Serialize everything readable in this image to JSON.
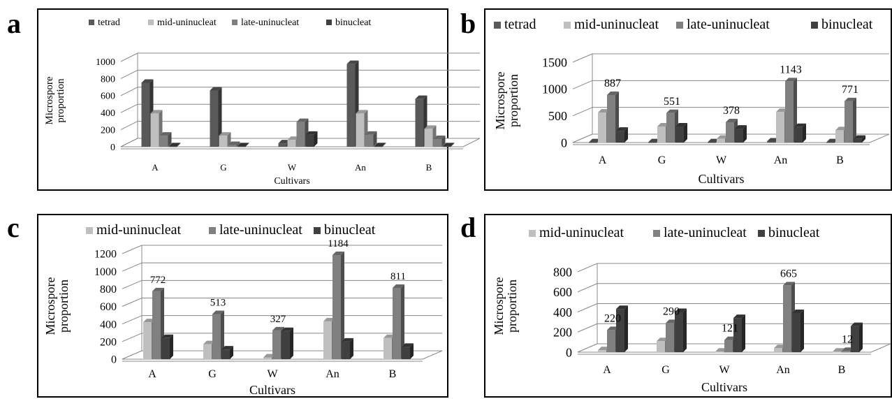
{
  "colors": {
    "tetrad": "#595959",
    "mid_uninucleat": "#bfbfbf",
    "late_uninucleat": "#808080",
    "binucleat": "#404040"
  },
  "panels": [
    {
      "letter": "a"
    },
    {
      "letter": "b"
    },
    {
      "letter": "c"
    },
    {
      "letter": "d"
    }
  ],
  "chart_data": [
    {
      "panel": "a",
      "type": "bar",
      "categories": [
        "A",
        "G",
        "W",
        "An",
        "B"
      ],
      "series": [
        {
          "name": "tetrad",
          "values": [
            750,
            660,
            40,
            970,
            560
          ]
        },
        {
          "name": "mid-uninucleat",
          "values": [
            390,
            130,
            80,
            390,
            210
          ]
        },
        {
          "name": "late-uninucleat",
          "values": [
            130,
            20,
            290,
            140,
            90
          ]
        },
        {
          "name": "binucleat",
          "values": [
            5,
            5,
            140,
            5,
            5
          ]
        }
      ],
      "xlabel": "Cultivars",
      "ylabel": "Microspore proportion",
      "ylim": [
        0,
        1000
      ],
      "yticks": [
        0,
        200,
        400,
        600,
        800,
        1000
      ],
      "data_labels": [],
      "legend_position": "top",
      "grid": true
    },
    {
      "panel": "b",
      "type": "bar",
      "categories": [
        "A",
        "G",
        "W",
        "An",
        "B"
      ],
      "series": [
        {
          "name": "tetrad",
          "values": [
            5,
            5,
            5,
            20,
            5
          ]
        },
        {
          "name": "mid-uninucleat",
          "values": [
            560,
            300,
            70,
            570,
            230
          ]
        },
        {
          "name": "late-uninucleat",
          "values": [
            887,
            551,
            378,
            1143,
            771
          ]
        },
        {
          "name": "binucleat",
          "values": [
            220,
            300,
            260,
            290,
            70
          ]
        }
      ],
      "xlabel": "Cultivars",
      "ylabel": "Microspore proportion",
      "ylim": [
        0,
        1500
      ],
      "yticks": [
        0,
        500,
        1000,
        1500
      ],
      "data_labels": [
        "887",
        "551",
        "378",
        "1143",
        "771"
      ],
      "legend_position": "top",
      "grid": true
    },
    {
      "panel": "c",
      "type": "bar",
      "categories": [
        "A",
        "G",
        "W",
        "An",
        "B"
      ],
      "series": [
        {
          "name": "mid-uninucleat",
          "values": [
            420,
            170,
            20,
            430,
            240
          ]
        },
        {
          "name": "late-uninucleat",
          "values": [
            772,
            513,
            327,
            1184,
            811
          ]
        },
        {
          "name": "binucleat",
          "values": [
            240,
            110,
            320,
            200,
            140
          ]
        }
      ],
      "xlabel": "Cultivars",
      "ylabel": "Microspore proportion",
      "ylim": [
        0,
        1200
      ],
      "yticks": [
        0,
        200,
        400,
        600,
        800,
        1000,
        1200
      ],
      "data_labels": [
        "772",
        "513",
        "327",
        "1184",
        "811"
      ],
      "legend_position": "top",
      "grid": true
    },
    {
      "panel": "d",
      "type": "bar",
      "categories": [
        "A",
        "G",
        "W",
        "An",
        "B"
      ],
      "series": [
        {
          "name": "mid-uninucleat",
          "values": [
            20,
            110,
            5,
            40,
            5
          ]
        },
        {
          "name": "late-uninucleat",
          "values": [
            220,
            290,
            121,
            665,
            12
          ]
        },
        {
          "name": "binucleat",
          "values": [
            430,
            400,
            340,
            390,
            260
          ]
        }
      ],
      "xlabel": "Cultivars",
      "ylabel": "Microspore proportion",
      "ylim": [
        0,
        800
      ],
      "yticks": [
        0,
        200,
        400,
        600,
        800
      ],
      "data_labels": [
        "220",
        "290",
        "121",
        "665",
        "12"
      ],
      "legend_position": "top",
      "grid": true
    }
  ]
}
